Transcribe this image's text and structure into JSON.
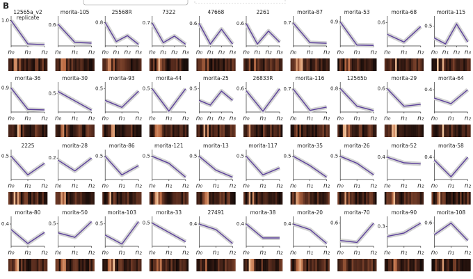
{
  "panel_label": "B",
  "chart_data": [
    {
      "type": "line",
      "title": "12565a_v2",
      "annotation": "replicate",
      "categories": [
        "n₀",
        "n₁",
        "n₂"
      ],
      "values": [
        1.0,
        0.08,
        0.05
      ],
      "color": "#5b3f9a",
      "ylim": [
        0,
        1.1
      ],
      "yticks": [
        {
          "value": 1,
          "label": "1.0"
        }
      ]
    },
    {
      "type": "line",
      "title": "morita-105",
      "categories": [
        "n₀",
        "n₁",
        "n₂"
      ],
      "values": [
        0.62,
        0.1,
        0.08
      ],
      "color": "#5b3f9a",
      "ylim": [
        0,
        0.8
      ],
      "yticks": [
        0.6
      ]
    },
    {
      "type": "line",
      "title": "25568R",
      "categories": [
        "n₀",
        "n₁",
        "n₂",
        "n₃"
      ],
      "values": [
        0.8,
        0.15,
        0.35,
        0.05
      ],
      "color": "#5b3f9a",
      "ylim": [
        0,
        0.95
      ],
      "yticks": [
        0.8
      ]
    },
    {
      "type": "line",
      "title": "7322",
      "categories": [
        "n₀",
        "n₁",
        "n₂",
        "n₃"
      ],
      "values": [
        0.7,
        0.1,
        0.3,
        0.05
      ],
      "color": "#5b3f9a",
      "ylim": [
        0,
        0.85
      ],
      "yticks": [
        0.7
      ]
    },
    {
      "type": "line",
      "title": "47668",
      "categories": [
        "n₀",
        "n₁",
        "n₂",
        "n₃"
      ],
      "values": [
        0.6,
        0.05,
        0.45,
        0.05
      ],
      "color": "#5b3f9a",
      "ylim": [
        0,
        0.75
      ],
      "yticks": [
        0.6
      ]
    },
    {
      "type": "line",
      "title": "2261",
      "categories": [
        "n₀",
        "n₁",
        "n₂",
        "n₃"
      ],
      "values": [
        0.6,
        0.05,
        0.4,
        0.1
      ],
      "color": "#5b3f9a",
      "ylim": [
        0,
        0.75
      ],
      "yticks": [
        0.6
      ]
    },
    {
      "type": "line",
      "title": "morita-87",
      "categories": [
        "n₀",
        "n₁",
        "n₂"
      ],
      "values": [
        0.7,
        0.1,
        0.08
      ],
      "color": "#5b3f9a",
      "ylim": [
        0,
        0.85
      ],
      "yticks": [
        0.7
      ]
    },
    {
      "type": "line",
      "title": "morita-53",
      "categories": [
        "n₀",
        "n₁",
        "n₂"
      ],
      "values": [
        0.9,
        0.03,
        0.02
      ],
      "color": "#5b3f9a",
      "ylim": [
        0,
        1.05
      ],
      "yticks": [
        0.9
      ]
    },
    {
      "type": "line",
      "title": "morita-68",
      "categories": [
        "n₀",
        "n₁",
        "n₂"
      ],
      "values": [
        0.3,
        0.1,
        0.5
      ],
      "color": "#5b3f9a",
      "ylim": [
        0,
        0.72
      ],
      "yticks": [
        0.6
      ]
    },
    {
      "type": "line",
      "title": "morita-115",
      "categories": [
        "n₀",
        "n₁",
        "n₂",
        "n₃"
      ],
      "values": [
        0.2,
        0.05,
        0.55,
        0.1
      ],
      "color": "#5b3f9a",
      "ylim": [
        0,
        0.7
      ],
      "yticks": [
        0.5
      ]
    },
    {
      "type": "line",
      "title": "morita-36",
      "categories": [
        "n₀",
        "n₁",
        "n₂"
      ],
      "values": [
        0.9,
        0.1,
        0.08
      ],
      "color": "#5b3f9a",
      "ylim": [
        0,
        1.05
      ],
      "yticks": [
        0.9
      ]
    },
    {
      "type": "line",
      "title": "morita-30",
      "categories": [
        "n₀",
        "n₁",
        "n₂"
      ],
      "values": [
        0.55,
        0.3,
        0.05
      ],
      "color": "#5b3f9a",
      "ylim": [
        0,
        0.75
      ],
      "yticks": [
        0.5
      ]
    },
    {
      "type": "line",
      "title": "morita-93",
      "categories": [
        "n₀",
        "n₁",
        "n₂"
      ],
      "values": [
        0.25,
        0.1,
        0.45
      ],
      "color": "#5b3f9a",
      "ylim": [
        0,
        0.6
      ],
      "yticks": [
        0.5
      ]
    },
    {
      "type": "line",
      "title": "morita-44",
      "categories": [
        "n₀",
        "n₁",
        "n₂"
      ],
      "values": [
        0.5,
        0.02,
        0.5
      ],
      "color": "#5b3f9a",
      "ylim": [
        0,
        0.6
      ],
      "yticks": [
        0.5
      ]
    },
    {
      "type": "line",
      "title": "morita-25",
      "categories": [
        "n₀",
        "n₁",
        "n₂",
        "n₃"
      ],
      "values": [
        0.25,
        0.15,
        0.45,
        0.25
      ],
      "color": "#5b3f9a",
      "ylim": [
        0,
        0.6
      ],
      "yticks": [
        0.5
      ]
    },
    {
      "type": "line",
      "title": "26833R",
      "categories": [
        "n₀",
        "n₁",
        "n₂"
      ],
      "values": [
        0.55,
        0.02,
        0.6
      ],
      "color": "#5b3f9a",
      "ylim": [
        0,
        0.72
      ],
      "yticks": [
        0.6
      ]
    },
    {
      "type": "line",
      "title": "morita-116",
      "categories": [
        "n₀",
        "n₁",
        "n₂"
      ],
      "values": [
        0.7,
        0.05,
        0.15
      ],
      "color": "#5b3f9a",
      "ylim": [
        0,
        0.85
      ],
      "yticks": [
        0.7
      ]
    },
    {
      "type": "line",
      "title": "12565b",
      "categories": [
        "n₀",
        "n₁",
        "n₂"
      ],
      "values": [
        0.8,
        0.2,
        0.05
      ],
      "color": "#5b3f9a",
      "ylim": [
        0,
        0.95
      ],
      "yticks": [
        0.8
      ]
    },
    {
      "type": "line",
      "title": "morita-29",
      "categories": [
        "n₀",
        "n₁",
        "n₂"
      ],
      "values": [
        0.6,
        0.15,
        0.2
      ],
      "color": "#5b3f9a",
      "ylim": [
        0,
        0.72
      ],
      "yticks": [
        0.6
      ]
    },
    {
      "type": "line",
      "title": "morita-64",
      "categories": [
        "n₀",
        "n₁",
        "n₂"
      ],
      "values": [
        0.25,
        0.15,
        0.4
      ],
      "color": "#5b3f9a",
      "ylim": [
        0,
        0.5
      ],
      "yticks": [
        0.4
      ]
    },
    {
      "type": "line",
      "title": "2225",
      "categories": [
        "n₀",
        "n₁",
        "n₂"
      ],
      "values": [
        0.5,
        0.1,
        0.35
      ],
      "color": "#5b3f9a",
      "ylim": [
        0,
        0.6
      ],
      "yticks": [
        0.5
      ]
    },
    {
      "type": "line",
      "title": "morita-28",
      "categories": [
        "n₀",
        "n₁",
        "n₂"
      ],
      "values": [
        0.18,
        0.08,
        0.2
      ],
      "color": "#5b3f9a",
      "ylim": [
        0,
        0.26
      ],
      "yticks": [
        0.2
      ]
    },
    {
      "type": "line",
      "title": "morita-86",
      "categories": [
        "n₀",
        "n₁",
        "n₂"
      ],
      "values": [
        0.5,
        0.1,
        0.3
      ],
      "color": "#5b3f9a",
      "ylim": [
        0,
        0.6
      ],
      "yticks": [
        0.5
      ]
    },
    {
      "type": "line",
      "title": "morita-121",
      "categories": [
        "n₀",
        "n₁",
        "n₂"
      ],
      "values": [
        0.5,
        0.35,
        0.05
      ],
      "color": "#5b3f9a",
      "ylim": [
        0,
        0.6
      ],
      "yticks": [
        0.5
      ]
    },
    {
      "type": "line",
      "title": "morita-13",
      "categories": [
        "n₀",
        "n₁",
        "n₂"
      ],
      "values": [
        0.5,
        0.2,
        0.05
      ],
      "color": "#5b3f9a",
      "ylim": [
        0,
        0.6
      ],
      "yticks": [
        0.5
      ]
    },
    {
      "type": "line",
      "title": "morita-117",
      "categories": [
        "n₀",
        "n₁",
        "n₂"
      ],
      "values": [
        0.5,
        0.1,
        0.25
      ],
      "color": "#5b3f9a",
      "ylim": [
        0,
        0.6
      ],
      "yticks": [
        0.5
      ]
    },
    {
      "type": "line",
      "title": "morita-35",
      "categories": [
        "n₀",
        "n₁",
        "n₂"
      ],
      "values": [
        0.5,
        0.3,
        0.05
      ],
      "color": "#5b3f9a",
      "ylim": [
        0,
        0.6
      ],
      "yticks": [
        0.5
      ]
    },
    {
      "type": "line",
      "title": "morita-26",
      "categories": [
        "n₀",
        "n₁",
        "n₂"
      ],
      "values": [
        0.5,
        0.35,
        0.1
      ],
      "color": "#5b3f9a",
      "ylim": [
        0,
        0.6
      ],
      "yticks": [
        0.5
      ]
    },
    {
      "type": "line",
      "title": "morita-52",
      "categories": [
        "n₀",
        "n₁",
        "n₂"
      ],
      "values": [
        0.4,
        0.3,
        0.28
      ],
      "color": "#5b3f9a",
      "ylim": [
        0,
        0.5
      ],
      "yticks": [
        0.4
      ]
    },
    {
      "type": "line",
      "title": "morita-58",
      "categories": [
        "n₀",
        "n₁",
        "n₂"
      ],
      "values": [
        0.35,
        0.05,
        0.4
      ],
      "color": "#5b3f9a",
      "ylim": [
        0,
        0.5
      ],
      "yticks": [
        0.4
      ]
    },
    {
      "type": "line",
      "title": "morita-80",
      "categories": [
        "n₀",
        "n₁",
        "n₂"
      ],
      "values": [
        0.3,
        0.05,
        0.25
      ],
      "color": "#5b3f9a",
      "ylim": [
        0,
        0.5
      ],
      "yticks": [
        0.4
      ]
    },
    {
      "type": "line",
      "title": "morita-50",
      "categories": [
        "n₀",
        "n₁",
        "n₂"
      ],
      "values": [
        0.3,
        0.2,
        0.55
      ],
      "color": "#5b3f9a",
      "ylim": [
        0,
        0.62
      ],
      "yticks": [
        0.5
      ]
    },
    {
      "type": "line",
      "title": "morita-103",
      "categories": [
        "n₀",
        "n₁",
        "n₂"
      ],
      "values": [
        0.25,
        0.05,
        0.55
      ],
      "color": "#5b3f9a",
      "ylim": [
        0,
        0.62
      ],
      "yticks": [
        0.5
      ]
    },
    {
      "type": "line",
      "title": "morita-33",
      "categories": [
        "n₀",
        "n₁",
        "n₂"
      ],
      "values": [
        0.5,
        0.3,
        0.1
      ],
      "color": "#5b3f9a",
      "ylim": [
        0,
        0.6
      ],
      "yticks": [
        0.5
      ]
    },
    {
      "type": "line",
      "title": "27491",
      "categories": [
        "n₀",
        "n₁",
        "n₂"
      ],
      "values": [
        0.4,
        0.3,
        0.05
      ],
      "color": "#5b3f9a",
      "ylim": [
        0,
        0.5
      ],
      "yticks": [
        0.4
      ]
    },
    {
      "type": "line",
      "title": "morita-38",
      "categories": [
        "n₀",
        "n₁",
        "n₂"
      ],
      "values": [
        0.4,
        0.15,
        0.15
      ],
      "color": "#5b3f9a",
      "ylim": [
        0,
        0.5
      ],
      "yticks": [
        0.4
      ]
    },
    {
      "type": "line",
      "title": "morita-20",
      "categories": [
        "n₀",
        "n₁",
        "n₂"
      ],
      "values": [
        0.4,
        0.3,
        0.05
      ],
      "color": "#5b3f9a",
      "ylim": [
        0,
        0.5
      ],
      "yticks": [
        0.4
      ]
    },
    {
      "type": "line",
      "title": "morita-70",
      "categories": [
        "n₀",
        "n₁",
        "n₂"
      ],
      "values": [
        0.15,
        0.1,
        0.6
      ],
      "color": "#5b3f9a",
      "ylim": [
        0,
        0.72
      ],
      "yticks": [
        0.6
      ]
    },
    {
      "type": "line",
      "title": "morita-90",
      "categories": [
        "n₀",
        "n₁",
        "n₂"
      ],
      "values": [
        0.15,
        0.2,
        0.35
      ],
      "color": "#5b3f9a",
      "ylim": [
        0,
        0.42
      ],
      "yticks": [
        0.3
      ]
    },
    {
      "type": "line",
      "title": "morita-108",
      "categories": [
        "n₀",
        "n₁",
        "n₂"
      ],
      "values": [
        0.3,
        0.6,
        0.15
      ],
      "color": "#5b3f9a",
      "ylim": [
        0,
        0.72
      ],
      "yticks": [
        0.6
      ]
    }
  ]
}
